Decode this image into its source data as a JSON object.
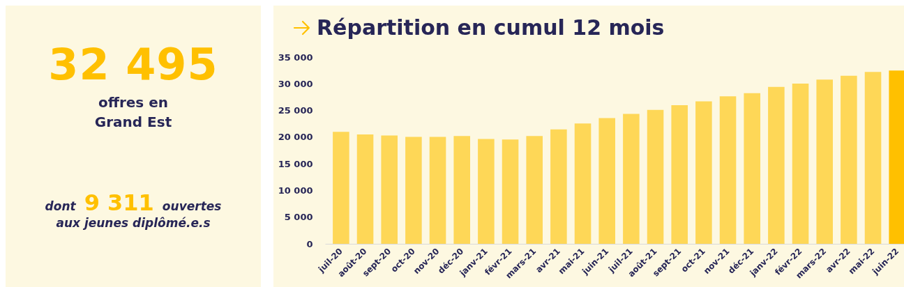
{
  "chart_data": [
    {
      "type": "other",
      "title": "32 495",
      "subtitle": "offres en Grand Est",
      "annotations": [
        "dont",
        "9 311",
        "ouvertes",
        "aux jeunes diplômé.e.s"
      ]
    },
    {
      "type": "bar",
      "title": "Répartition en cumul 12 mois",
      "categories": [
        "juil-20",
        "août-20",
        "sept-20",
        "oct-20",
        "nov-20",
        "déc-20",
        "janv-21",
        "févr-21",
        "mars-21",
        "avr-21",
        "mai-21",
        "juin-21",
        "juil-21",
        "août-21",
        "sept-21",
        "oct-21",
        "nov-21",
        "déc-21",
        "janv-22",
        "févr-22",
        "mars-22",
        "avr-22",
        "mai-22",
        "juin-22"
      ],
      "values": [
        21000,
        20500,
        20300,
        20050,
        20050,
        20200,
        19650,
        19550,
        20200,
        21450,
        22550,
        23580,
        24370,
        25110,
        25980,
        26720,
        27640,
        28250,
        29420,
        30040,
        30780,
        31520,
        32210,
        32495
      ],
      "colors": [
        "#fed757",
        "#fed757",
        "#fed757",
        "#fed757",
        "#fed757",
        "#fed757",
        "#fed757",
        "#fed757",
        "#fed757",
        "#fed757",
        "#fed757",
        "#fed757",
        "#fed757",
        "#fed757",
        "#fed757",
        "#fed757",
        "#fed757",
        "#fed757",
        "#fed757",
        "#fed757",
        "#fed757",
        "#fed757",
        "#fed757",
        "#ffc000"
      ],
      "ylim": [
        0,
        35000
      ],
      "yticks": [
        0,
        {
          "value": 5000,
          "label": "5 000"
        },
        {
          "value": 10000,
          "label": "10 000"
        },
        {
          "value": 15000,
          "label": "15 000"
        },
        {
          "value": 20000,
          "label": "20 000"
        },
        {
          "value": 25000,
          "label": "25 000"
        },
        {
          "value": 30000,
          "label": "30 000"
        },
        {
          "value": 35000,
          "label": "35 000"
        }
      ]
    }
  ]
}
